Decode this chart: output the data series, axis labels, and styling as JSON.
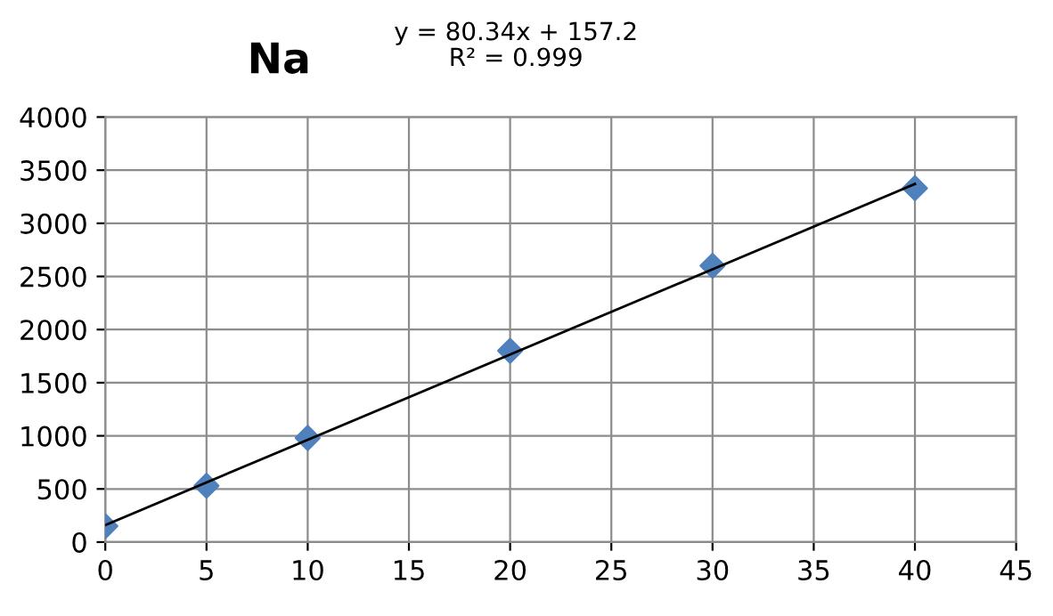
{
  "chart_data": {
    "type": "scatter",
    "title": "Na",
    "annotations": [
      "y = 80.34x + 157.2\nR² = 0.999"
    ],
    "xlim": [
      0,
      45
    ],
    "xticks": [
      0,
      5,
      10,
      15,
      20,
      25,
      30,
      35,
      40,
      45
    ],
    "ylim": [
      0,
      4000
    ],
    "yticks": [
      0,
      500,
      1000,
      1500,
      2000,
      2500,
      3000,
      3500,
      4000
    ],
    "grid": true,
    "legend": false,
    "series": [
      {
        "color": "#4f81bd",
        "marker": "diamond",
        "x": [
          0,
          5,
          10,
          20,
          30,
          40
        ],
        "values": [
          150,
          530,
          980,
          1800,
          2600,
          3330
        ]
      },
      {
        "type": "line",
        "color": "#000000",
        "marker": "none",
        "line_style": "solid",
        "x": [
          0,
          40
        ],
        "values": [
          160,
          3370
        ]
      }
    ]
  }
}
